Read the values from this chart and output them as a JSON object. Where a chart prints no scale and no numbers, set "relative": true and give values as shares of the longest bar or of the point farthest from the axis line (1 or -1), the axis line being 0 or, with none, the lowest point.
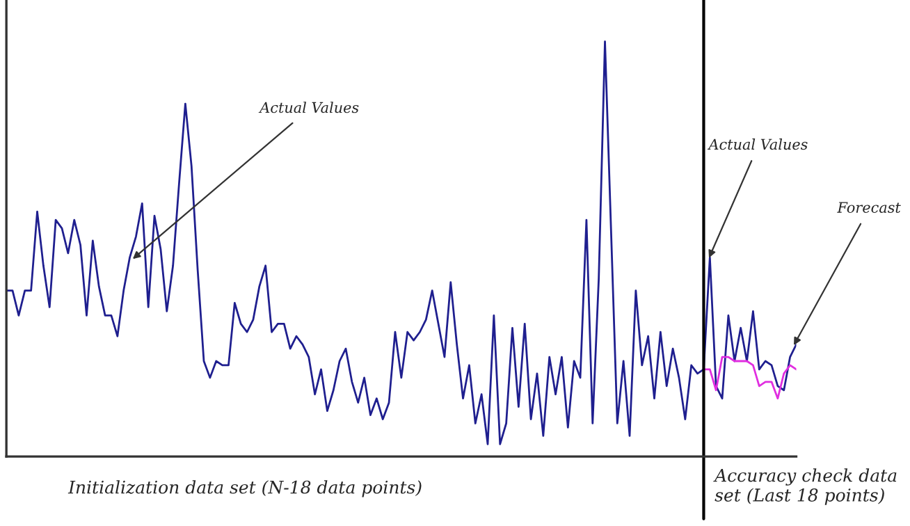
{
  "chart_data": {
    "type": "line",
    "relative": true,
    "categories": [
      null,
      null,
      null,
      null,
      null,
      null,
      null,
      null,
      null,
      null,
      null,
      null,
      null,
      null,
      null,
      null,
      null,
      null,
      null,
      null,
      null,
      null,
      null,
      null,
      null,
      null,
      null,
      null,
      null,
      null,
      null,
      null,
      null,
      null,
      null,
      null,
      null,
      null,
      null,
      null,
      null,
      null,
      null,
      null,
      null,
      null,
      null,
      null,
      null,
      null,
      null,
      null,
      null,
      null,
      null,
      null,
      null,
      null,
      null,
      null,
      null,
      null,
      null,
      null,
      null,
      null,
      null,
      null,
      null,
      null,
      null,
      null,
      null,
      null,
      null,
      null,
      null,
      null,
      null,
      null,
      null,
      null,
      null,
      null,
      null,
      null,
      null,
      null,
      null,
      null,
      null,
      null,
      null,
      null,
      null,
      null,
      null,
      null,
      null,
      null,
      null,
      null,
      null,
      null,
      null,
      null,
      null,
      null,
      null,
      null,
      null,
      null,
      null,
      null,
      null,
      null,
      null,
      null,
      null,
      null,
      null,
      null,
      null,
      null,
      null,
      null,
      null,
      null,
      null
    ],
    "series": [
      {
        "color": "#1f1f8f",
        "values": [
          0.4,
          0.4,
          0.34,
          0.4,
          0.4,
          0.59,
          0.46,
          0.36,
          0.57,
          0.55,
          0.49,
          0.57,
          0.51,
          0.34,
          0.52,
          0.41,
          0.34,
          0.34,
          0.29,
          0.4,
          0.48,
          0.53,
          0.61,
          0.36,
          0.58,
          0.5,
          0.35,
          0.46,
          0.66,
          0.85,
          0.7,
          0.45,
          0.23,
          0.19,
          0.23,
          0.22,
          0.22,
          0.37,
          0.32,
          0.3,
          0.33,
          0.41,
          0.46,
          0.3,
          0.32,
          0.32,
          0.26,
          0.29,
          0.27,
          0.24,
          0.15,
          0.21,
          0.11,
          0.16,
          0.23,
          0.26,
          0.18,
          0.13,
          0.19,
          0.1,
          0.14,
          0.09,
          0.13,
          0.3,
          0.19,
          0.3,
          0.28,
          0.3,
          0.33,
          0.4,
          0.32,
          0.24,
          0.42,
          0.27,
          0.14,
          0.22,
          0.08,
          0.15,
          0.03,
          0.34,
          0.03,
          0.08,
          0.31,
          0.12,
          0.32,
          0.09,
          0.2,
          0.05,
          0.24,
          0.15,
          0.24,
          0.07,
          0.23,
          0.19,
          0.57,
          0.08,
          0.43,
          1.0,
          0.54,
          0.08,
          0.23,
          0.05,
          0.4,
          0.22,
          0.29,
          0.14,
          0.3,
          0.17,
          0.26,
          0.19,
          0.09,
          0.22,
          0.2,
          0.21,
          0.48,
          0.17,
          0.14,
          0.34,
          0.23,
          0.31,
          0.23,
          0.35,
          0.21,
          0.23,
          0.22,
          0.17,
          0.16,
          0.24,
          0.27
        ]
      },
      {
        "color": "#e02ee0",
        "values": [
          null,
          null,
          null,
          null,
          null,
          null,
          null,
          null,
          null,
          null,
          null,
          null,
          null,
          null,
          null,
          null,
          null,
          null,
          null,
          null,
          null,
          null,
          null,
          null,
          null,
          null,
          null,
          null,
          null,
          null,
          null,
          null,
          null,
          null,
          null,
          null,
          null,
          null,
          null,
          null,
          null,
          null,
          null,
          null,
          null,
          null,
          null,
          null,
          null,
          null,
          null,
          null,
          null,
          null,
          null,
          null,
          null,
          null,
          null,
          null,
          null,
          null,
          null,
          null,
          null,
          null,
          null,
          null,
          null,
          null,
          null,
          null,
          null,
          null,
          null,
          null,
          null,
          null,
          null,
          null,
          null,
          null,
          null,
          null,
          null,
          null,
          null,
          null,
          null,
          null,
          null,
          null,
          null,
          null,
          null,
          null,
          null,
          null,
          null,
          null,
          null,
          null,
          null,
          null,
          null,
          null,
          null,
          null,
          null,
          null,
          null,
          null,
          null,
          0.21,
          0.21,
          0.16,
          0.24,
          0.24,
          0.23,
          0.23,
          0.23,
          0.22,
          0.17,
          0.18,
          0.18,
          0.14,
          0.2,
          0.22,
          0.21
        ]
      }
    ],
    "annotations": [
      "Actual Values",
      "Actual Values",
      "Forecast",
      "Initialization data set (N-18 data points)",
      "Accuracy check data set (Last 18 points)"
    ]
  }
}
